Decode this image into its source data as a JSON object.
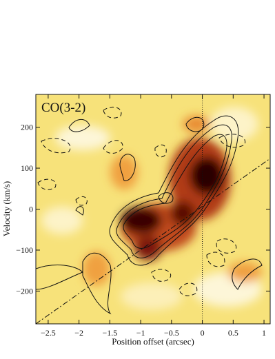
{
  "chart_data": {
    "type": "image",
    "annotation": "CO(3-2)",
    "x_label": "Position offset (arcsec)",
    "y_label": "Velocity (km/s)",
    "xlim": [
      -2.7,
      1.1
    ],
    "ylim": [
      -280,
      280
    ],
    "xticks": [
      {
        "value": -2.5,
        "label": "−2.5"
      },
      {
        "value": -2,
        "label": "−2"
      },
      {
        "value": -1.5,
        "label": "−1.5"
      },
      {
        "value": -1,
        "label": "−1"
      },
      {
        "value": -0.5,
        "label": "−0.5"
      },
      0,
      0.5,
      1
    ],
    "yticks": [
      {
        "value": -200,
        "label": "−200"
      },
      {
        "value": -100,
        "label": "−100"
      },
      0,
      100,
      200
    ]
  }
}
